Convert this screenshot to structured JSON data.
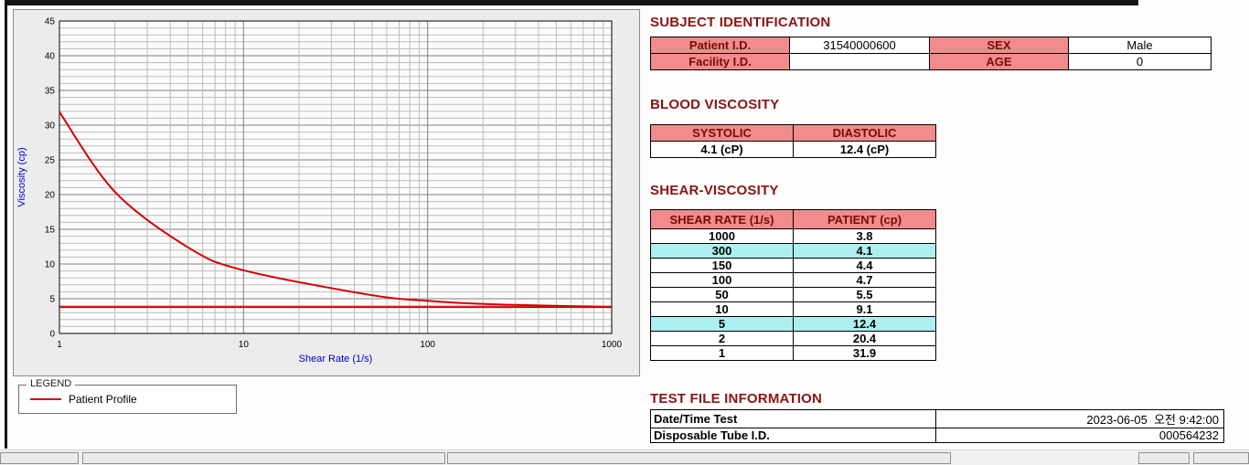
{
  "chart_data": {
    "type": "line",
    "title": "",
    "xlabel": "Shear Rate (1/s)",
    "ylabel": "Viscosity (cp)",
    "x_scale": "log",
    "xlim": [
      1,
      1000
    ],
    "ylim": [
      0,
      45
    ],
    "x_ticks": [
      1,
      10,
      100,
      1000
    ],
    "y_ticks": [
      0,
      5,
      10,
      15,
      20,
      25,
      30,
      35,
      40,
      45
    ],
    "grid": true,
    "axis_label_color": "#0000cc",
    "series": [
      {
        "name": "Patient Profile",
        "color": "#d40000",
        "x": [
          1,
          2,
          5,
          10,
          50,
          100,
          150,
          300,
          1000
        ],
        "y": [
          31.9,
          20.4,
          12.4,
          9.1,
          5.5,
          4.7,
          4.4,
          4.1,
          3.8
        ]
      }
    ],
    "reference_line": {
      "y": 3.8,
      "color": "#d40000"
    },
    "legend": {
      "title": "LEGEND",
      "position": "below-left",
      "entries": [
        {
          "label": "Patient Profile",
          "color": "#d40000"
        }
      ]
    }
  },
  "subject_identification": {
    "title": "SUBJECT IDENTIFICATION",
    "rows": [
      {
        "label1": "Patient I.D.",
        "value1": "31540000600",
        "label2": "SEX",
        "value2": "Male"
      },
      {
        "label1": "Facility I.D.",
        "value1": "",
        "label2": "AGE",
        "value2": "0"
      }
    ]
  },
  "blood_viscosity": {
    "title": "BLOOD VISCOSITY",
    "headers": [
      "SYSTOLIC",
      "DIASTOLIC"
    ],
    "values": [
      "4.1 (cP)",
      "12.4 (cP)"
    ]
  },
  "shear_viscosity": {
    "title": "SHEAR-VISCOSITY",
    "headers": [
      "SHEAR RATE (1/s)",
      "PATIENT (cp)"
    ],
    "rows": [
      {
        "shear": "1000",
        "patient": "3.8",
        "highlight": false
      },
      {
        "shear": "300",
        "patient": "4.1",
        "highlight": true
      },
      {
        "shear": "150",
        "patient": "4.4",
        "highlight": false
      },
      {
        "shear": "100",
        "patient": "4.7",
        "highlight": false
      },
      {
        "shear": "50",
        "patient": "5.5",
        "highlight": false
      },
      {
        "shear": "10",
        "patient": "9.1",
        "highlight": false
      },
      {
        "shear": "5",
        "patient": "12.4",
        "highlight": true
      },
      {
        "shear": "2",
        "patient": "20.4",
        "highlight": false
      },
      {
        "shear": "1",
        "patient": "31.9",
        "highlight": false
      }
    ]
  },
  "test_file_information": {
    "title": "TEST FILE INFORMATION",
    "rows": [
      {
        "label": "Date/Time Test",
        "value": "2023-06-05  오전 9:42:00"
      },
      {
        "label": "Disposable Tube I.D.",
        "value": "000564232"
      }
    ]
  },
  "colors": {
    "heading": "#8b1414",
    "table_header_bg": "#f28b8b",
    "table_header_text": "#7a0a0a",
    "highlight_row_bg": "#aef0f0",
    "curve": "#d40000",
    "axis_label": "#0000cc"
  }
}
